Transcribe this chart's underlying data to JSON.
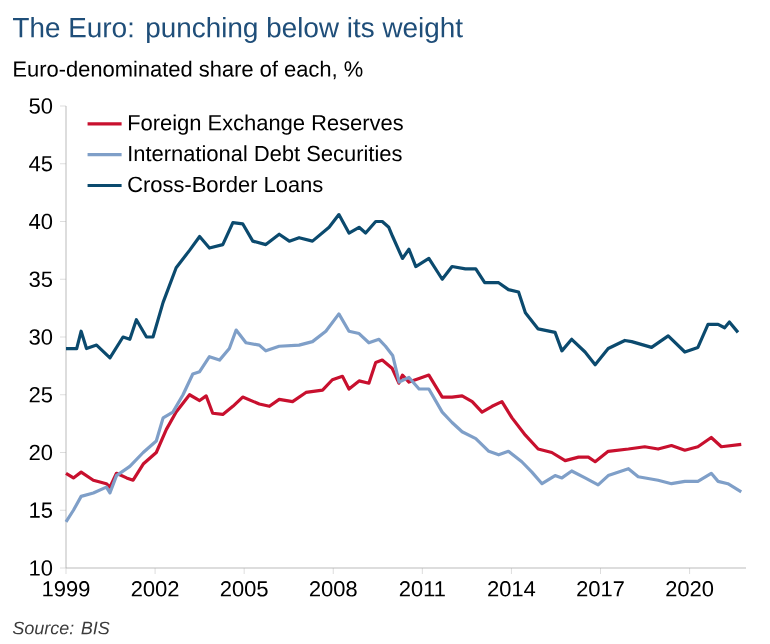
{
  "chart_data": {
    "type": "line",
    "title": "The Euro: punching below its weight",
    "subtitle": "Euro-denominated share of each, %",
    "annotations": [
      "Source: BIS"
    ],
    "xlim": [
      1999,
      2021.9
    ],
    "xticks": [
      1999,
      2002,
      2005,
      2008,
      2011,
      2014,
      2017,
      2020
    ],
    "ylim": [
      10,
      50
    ],
    "yticks": [
      10,
      15,
      20,
      25,
      30,
      35,
      40,
      45,
      50
    ],
    "legend": "top left",
    "grid": false,
    "marker": "none",
    "line_style": "solid",
    "series": [
      {
        "name": "Foreign Exchange Reserves",
        "color": "#c8102e",
        "x": [
          1999,
          1999.25,
          1999.51,
          1999.92,
          2000.36,
          2000.48,
          2000.7,
          2001.04,
          2001.26,
          2001.6,
          2002.04,
          2002.38,
          2002.71,
          2003.16,
          2003.5,
          2003.72,
          2003.94,
          2004.28,
          2004.62,
          2004.95,
          2005.51,
          2005.85,
          2006.18,
          2006.63,
          2007.08,
          2007.64,
          2007.97,
          2008.31,
          2008.53,
          2008.87,
          2009.2,
          2009.43,
          2009.65,
          2009.98,
          2010.21,
          2010.33,
          2010.55,
          2010.89,
          2011.22,
          2011.67,
          2012.0,
          2012.34,
          2012.68,
          2013.01,
          2013.35,
          2013.68,
          2014.02,
          2014.47,
          2014.9,
          2015.36,
          2015.81,
          2016.26,
          2016.59,
          2016.82,
          2017.26,
          2017.94,
          2018.49,
          2018.94,
          2019.39,
          2019.84,
          2020.28,
          2020.73,
          2021.07,
          2021.74
        ],
        "values": [
          18.2,
          17.8,
          18.3,
          17.6,
          17.3,
          17.0,
          18.2,
          17.8,
          17.6,
          19,
          20,
          22,
          23.5,
          25,
          24.5,
          24.9,
          23.4,
          23.3,
          24,
          24.8,
          24.2,
          24,
          24.6,
          24.4,
          25.2,
          25.4,
          26.3,
          26.6,
          25.5,
          26.2,
          26,
          27.8,
          28,
          27.3,
          26,
          26.7,
          26.1,
          26.4,
          26.7,
          24.8,
          24.8,
          24.9,
          24.4,
          23.5,
          24,
          24.4,
          23,
          21.5,
          20.3,
          20,
          19.3,
          19.6,
          19.6,
          19.2,
          20.1,
          20.3,
          20.5,
          20.3,
          20.6,
          20.2,
          20.5,
          21.3,
          20.5,
          20.7
        ]
      },
      {
        "name": "International Debt Securities",
        "color": "#7f9fc8",
        "x": [
          1999,
          1999.25,
          1999.51,
          1999.92,
          2000.36,
          2000.48,
          2000.7,
          2001.15,
          2001.6,
          2002.04,
          2002.27,
          2002.6,
          2002.94,
          2003.27,
          2003.5,
          2003.83,
          2004.17,
          2004.5,
          2004.73,
          2005.06,
          2005.51,
          2005.73,
          2006.18,
          2006.85,
          2007.3,
          2007.75,
          2008.19,
          2008.53,
          2008.87,
          2009.2,
          2009.54,
          2009.76,
          2010.0,
          2010.22,
          2010.55,
          2010.89,
          2011.22,
          2011.67,
          2012.0,
          2012.34,
          2012.8,
          2013.24,
          2013.57,
          2013.9,
          2014.35,
          2014.69,
          2015.03,
          2015.47,
          2015.7,
          2016.03,
          2016.48,
          2016.92,
          2017.26,
          2017.94,
          2018.27,
          2018.94,
          2019.39,
          2019.84,
          2020.28,
          2020.73,
          2020.96,
          2021.29,
          2021.74
        ],
        "values": [
          14.0,
          15,
          16.2,
          16.5,
          17,
          16.5,
          18,
          18.8,
          20,
          21,
          23,
          23.5,
          25,
          26.8,
          27,
          28.3,
          28,
          29,
          30.6,
          29.5,
          29.3,
          28.8,
          29.2,
          29.3,
          29.6,
          30.5,
          32,
          30.5,
          30.3,
          29.5,
          29.8,
          29.2,
          28.4,
          26.1,
          26.5,
          25.5,
          25.5,
          23.5,
          22.6,
          21.8,
          21.2,
          20.1,
          19.8,
          20.1,
          19.2,
          18.3,
          17.3,
          18.0,
          17.8,
          18.4,
          17.8,
          17.2,
          18.0,
          18.6,
          17.9,
          17.6,
          17.3,
          17.5,
          17.5,
          18.2,
          17.5,
          17.3,
          16.6
        ]
      },
      {
        "name": "Cross-Border Loans",
        "color": "#0b4a6e",
        "x": [
          1999,
          1999.36,
          1999.51,
          1999.69,
          2000.03,
          2000.48,
          2000.92,
          2001.15,
          2001.37,
          2001.71,
          2001.93,
          2002.27,
          2002.71,
          2003.16,
          2003.5,
          2003.83,
          2004.28,
          2004.62,
          2004.95,
          2005.29,
          2005.73,
          2006.18,
          2006.52,
          2006.85,
          2007.3,
          2007.86,
          2008.19,
          2008.53,
          2008.87,
          2009.09,
          2009.43,
          2009.65,
          2009.87,
          2010.0,
          2010.33,
          2010.55,
          2010.78,
          2011.22,
          2011.67,
          2012.0,
          2012.45,
          2012.8,
          2013.1,
          2013.57,
          2013.9,
          2014.24,
          2014.47,
          2014.9,
          2015.47,
          2015.7,
          2016.03,
          2016.48,
          2016.82,
          2017.26,
          2017.82,
          2018.05,
          2018.72,
          2019.28,
          2019.84,
          2020.28,
          2020.62,
          2020.96,
          2021.18,
          2021.34,
          2021.63
        ],
        "values": [
          29,
          29,
          30.5,
          29,
          29.3,
          28.2,
          30,
          29.8,
          31.5,
          30,
          30,
          33,
          36,
          37.5,
          38.7,
          37.7,
          38,
          39.9,
          39.8,
          38.3,
          38,
          38.9,
          38.3,
          38.6,
          38.3,
          39.5,
          40.6,
          39,
          39.5,
          39,
          40,
          40,
          39.5,
          38.7,
          36.8,
          37.6,
          36.1,
          36.8,
          35,
          36.1,
          35.9,
          35.9,
          34.7,
          34.7,
          34.1,
          33.9,
          32.1,
          30.7,
          30.4,
          28.8,
          29.8,
          28.7,
          27.6,
          29,
          29.7,
          29.6,
          29.1,
          30.1,
          28.7,
          29.1,
          31.1,
          31.1,
          30.8,
          31.3,
          30.4
        ]
      }
    ]
  }
}
